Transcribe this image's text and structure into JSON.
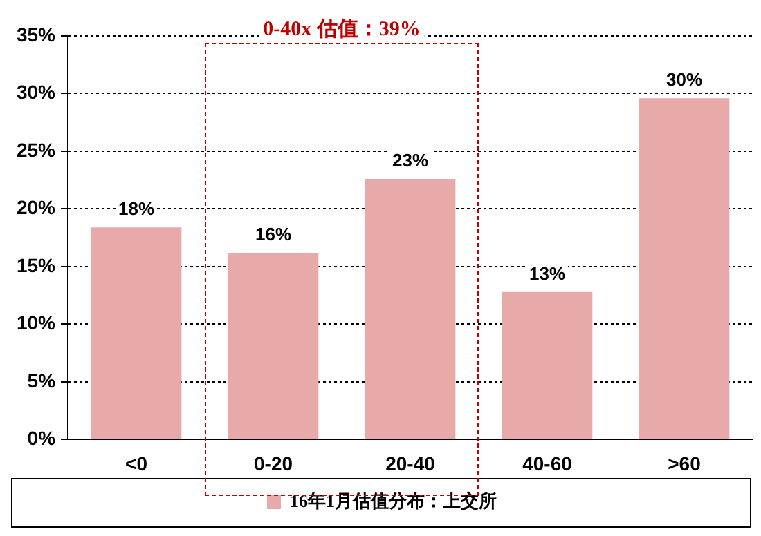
{
  "chart_data": {
    "type": "bar",
    "categories": [
      "<0",
      "0-20",
      "20-40",
      "40-60",
      ">60"
    ],
    "series": [
      {
        "name": "16年1月估值分布：上交所",
        "color": "#e8aaa9",
        "values": [
          18.4,
          16.2,
          22.6,
          12.8,
          29.6
        ],
        "value_labels": [
          "18%",
          "16%",
          "23%",
          "13%",
          "30%"
        ]
      }
    ],
    "ylim": [
      0,
      35
    ],
    "yticks": [
      {
        "value": 0,
        "label": "0%"
      },
      {
        "value": 5,
        "label": "5%"
      },
      {
        "value": 10,
        "label": "10%"
      },
      {
        "value": 15,
        "label": "15%"
      },
      {
        "value": 20,
        "label": "20%"
      },
      {
        "value": 25,
        "label": "25%"
      },
      {
        "value": 30,
        "label": "30%"
      },
      {
        "value": 35,
        "label": "35%"
      }
    ],
    "grid": "y",
    "legend": "bottom",
    "annotations": [
      "0-40x 估值：39%"
    ]
  }
}
